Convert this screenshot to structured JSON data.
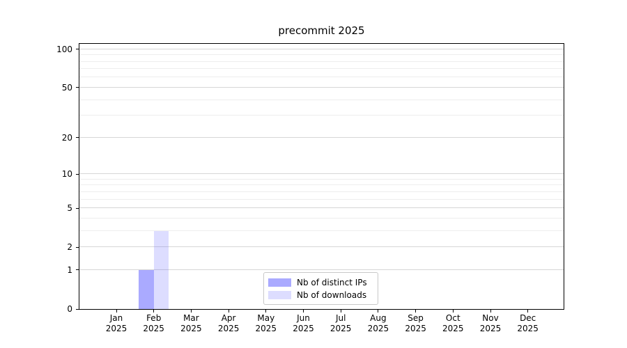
{
  "figure": {
    "background": "#ffffff"
  },
  "chart_data": {
    "type": "bar",
    "title": "precommit 2025",
    "categories": [
      "Jan",
      "Feb",
      "Mar",
      "Apr",
      "May",
      "Jun",
      "Jul",
      "Aug",
      "Sep",
      "Oct",
      "Nov",
      "Dec"
    ],
    "category_sublabel": "2025",
    "series": [
      {
        "name": "Nb of distinct IPs",
        "color": "rgba(85,85,255,0.5)",
        "values": [
          0,
          1,
          0,
          0,
          0,
          0,
          0,
          0,
          0,
          0,
          0,
          0
        ]
      },
      {
        "name": "Nb of downloads",
        "color": "rgba(85,85,255,0.2)",
        "values": [
          0,
          3,
          0,
          0,
          0,
          0,
          0,
          0,
          0,
          0,
          0,
          0
        ]
      }
    ],
    "xlabel": "",
    "ylabel": "",
    "y_scale": "log10(value+1)",
    "ylim": [
      0,
      109
    ],
    "y_major_ticks": [
      0,
      1,
      2,
      5,
      10,
      20,
      50,
      100
    ],
    "y_minor_ticks": [
      3,
      4,
      6,
      7,
      8,
      9,
      30,
      40,
      60,
      70,
      80,
      90
    ],
    "grid": "horizontal",
    "legend_position": "lower center",
    "colors": {
      "bar_distinct_ips": "rgba(85,85,255,0.5)",
      "bar_downloads": "rgba(85,85,255,0.2)",
      "major_grid": "#d6d6d6",
      "minor_grid": "#ededed",
      "spine": "#000000",
      "text": "#000000",
      "legend_border": "#c8c8c8"
    }
  }
}
